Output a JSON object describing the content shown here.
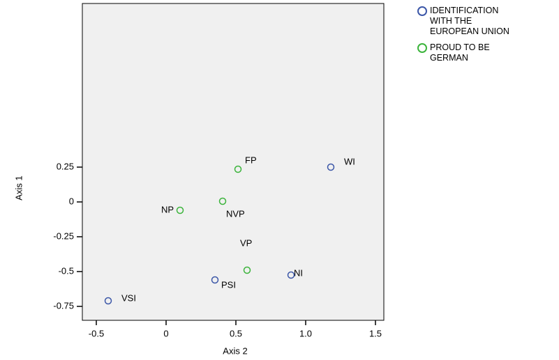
{
  "chart_data": {
    "type": "scatter",
    "x_label": "Axis 2",
    "y_label": "Axis 1",
    "xlim": [
      -0.6,
      1.56
    ],
    "ylim": [
      -0.85,
      1.425
    ],
    "xticks": [
      -0.5,
      0,
      {
        "value": 0.5,
        "label": "0.5"
      },
      {
        "value": 1,
        "label": "1.0"
      },
      1.5
    ],
    "yticks": [
      0.25,
      0,
      -0.25,
      -0.5,
      -0.75
    ],
    "background": "#f0f0f0",
    "series": [
      {
        "name": "IDENTIFICATION WITH THE EUROPEAN UNION",
        "color": "#3c57a8",
        "labels": [
          "WI",
          "NI",
          "PSI",
          "VSI"
        ],
        "x": [
          1.18,
          0.895,
          0.35,
          -0.415
        ],
        "values": [
          0.25,
          -0.525,
          -0.56,
          -0.71
        ]
      },
      {
        "name": "PROUD TO BE GERMAN",
        "color": "#3cb43c",
        "labels": [
          "FP",
          "NVP",
          "NP",
          "VP"
        ],
        "x": [
          0.515,
          0.405,
          0.1,
          0.58
        ],
        "values": [
          0.235,
          0.005,
          -0.06,
          -0.49
        ]
      }
    ]
  }
}
